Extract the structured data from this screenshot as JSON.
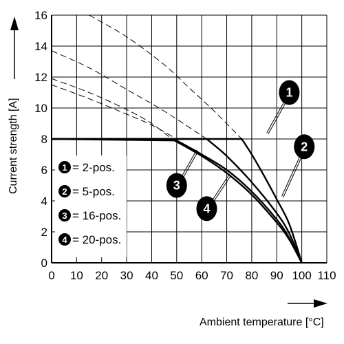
{
  "chart_data": {
    "type": "line",
    "xlabel": "Ambient temperature [°C]",
    "ylabel": "Current strength [A]",
    "xlim": [
      0,
      110
    ],
    "ylim": [
      0,
      16
    ],
    "x_ticks": [
      "0",
      "10",
      "20",
      "30",
      "40",
      "50",
      "60",
      "70",
      "80",
      "90",
      "100",
      "110"
    ],
    "y_ticks": [
      "0",
      "2",
      "4",
      "6",
      "8",
      "10",
      "12",
      "14",
      "16"
    ],
    "grid": true,
    "series": [
      {
        "name": "2-pos.",
        "marker": "1",
        "values": [
          [
            0,
            8
          ],
          [
            76,
            8
          ],
          [
            80,
            7.0
          ],
          [
            85,
            5.6
          ],
          [
            90,
            4.1
          ],
          [
            95,
            2.5
          ],
          [
            100,
            0
          ]
        ]
      },
      {
        "name": "5-pos.",
        "marker": "2",
        "values": [
          [
            0,
            8
          ],
          [
            62,
            8
          ],
          [
            70,
            6.9
          ],
          [
            80,
            5.2
          ],
          [
            90,
            3.2
          ],
          [
            95,
            1.9
          ],
          [
            100,
            0
          ]
        ]
      },
      {
        "name": "16-pos.",
        "marker": "3",
        "values": [
          [
            0,
            8
          ],
          [
            50,
            7.9
          ],
          [
            60,
            7.0
          ],
          [
            70,
            6.0
          ],
          [
            80,
            4.6
          ],
          [
            90,
            2.8
          ],
          [
            95,
            1.6
          ],
          [
            100,
            0
          ]
        ]
      },
      {
        "name": "20-pos.",
        "marker": "4",
        "values": [
          [
            0,
            8
          ],
          [
            48,
            8
          ],
          [
            60,
            6.9
          ],
          [
            70,
            5.8
          ],
          [
            80,
            4.4
          ],
          [
            90,
            2.6
          ],
          [
            95,
            1.5
          ],
          [
            100,
            0
          ]
        ]
      }
    ],
    "extension_curves": [
      {
        "marker": "1",
        "values": [
          [
            15,
            16
          ],
          [
            30,
            14.6
          ],
          [
            45,
            12.8
          ],
          [
            55,
            11.3
          ],
          [
            65,
            9.8
          ],
          [
            76,
            8
          ]
        ]
      },
      {
        "marker": "2",
        "values": [
          [
            0,
            13.7
          ],
          [
            15,
            12.6
          ],
          [
            30,
            11.2
          ],
          [
            45,
            9.8
          ],
          [
            62,
            8
          ]
        ]
      },
      {
        "marker": "3",
        "values": [
          [
            0,
            11.5
          ],
          [
            15,
            10.6
          ],
          [
            30,
            9.6
          ],
          [
            40,
            8.9
          ],
          [
            50,
            8
          ]
        ]
      },
      {
        "marker": "4",
        "values": [
          [
            0,
            11.9
          ],
          [
            15,
            11.0
          ],
          [
            30,
            9.9
          ],
          [
            40,
            9.0
          ],
          [
            48,
            8
          ]
        ]
      }
    ],
    "callouts": [
      {
        "marker": "1",
        "badge": [
          95,
          11.0
        ],
        "target": [
          86,
          8.4
        ]
      },
      {
        "marker": "2",
        "badge": [
          101,
          7.5
        ],
        "target": [
          92,
          4.3
        ]
      },
      {
        "marker": "3",
        "badge": [
          50,
          5.0
        ],
        "target": [
          58,
          7.3
        ]
      },
      {
        "marker": "4",
        "badge": [
          62,
          3.5
        ],
        "target": [
          71,
          5.7
        ]
      }
    ],
    "legend_position": "left",
    "legend": [
      {
        "marker": "1",
        "label": "= 2-pos."
      },
      {
        "marker": "2",
        "label": "= 5-pos."
      },
      {
        "marker": "3",
        "label": "= 16-pos."
      },
      {
        "marker": "4",
        "label": "= 20-pos."
      }
    ]
  }
}
